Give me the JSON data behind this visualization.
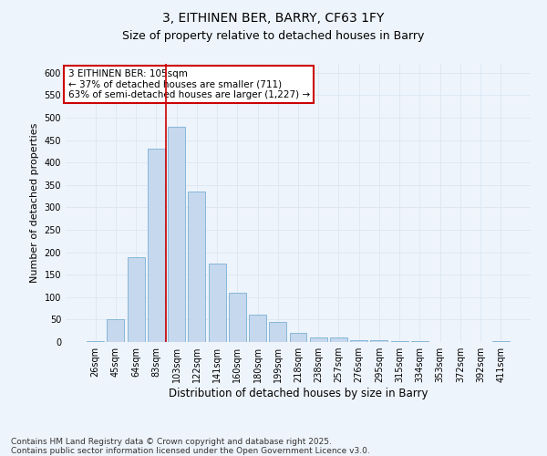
{
  "title1": "3, EITHINEN BER, BARRY, CF63 1FY",
  "title2": "Size of property relative to detached houses in Barry",
  "xlabel": "Distribution of detached houses by size in Barry",
  "ylabel": "Number of detached properties",
  "categories": [
    "26sqm",
    "45sqm",
    "64sqm",
    "83sqm",
    "103sqm",
    "122sqm",
    "141sqm",
    "160sqm",
    "180sqm",
    "199sqm",
    "218sqm",
    "238sqm",
    "257sqm",
    "276sqm",
    "295sqm",
    "315sqm",
    "334sqm",
    "353sqm",
    "372sqm",
    "392sqm",
    "411sqm"
  ],
  "values": [
    3,
    50,
    190,
    430,
    480,
    335,
    175,
    110,
    60,
    45,
    20,
    10,
    10,
    5,
    5,
    3,
    2,
    1,
    1,
    0,
    3
  ],
  "bar_color": "#c5d8ed",
  "bar_edge_color": "#7ab0d4",
  "grid_color": "#dce9f5",
  "background_color": "#eef4fb",
  "vline_x_index": 4,
  "vline_color": "#cc0000",
  "annotation_text": "3 EITHINEN BER: 105sqm\n← 37% of detached houses are smaller (711)\n63% of semi-detached houses are larger (1,227) →",
  "annotation_box_color": "#ffffff",
  "annotation_box_edge": "#cc0000",
  "ylim": [
    0,
    620
  ],
  "yticks": [
    0,
    50,
    100,
    150,
    200,
    250,
    300,
    350,
    400,
    450,
    500,
    550,
    600
  ],
  "footnote": "Contains HM Land Registry data © Crown copyright and database right 2025.\nContains public sector information licensed under the Open Government Licence v3.0.",
  "footnote_fontsize": 6.5,
  "title1_fontsize": 10,
  "title2_fontsize": 9,
  "xlabel_fontsize": 8.5,
  "ylabel_fontsize": 8,
  "tick_fontsize": 7,
  "annotation_fontsize": 7.5
}
